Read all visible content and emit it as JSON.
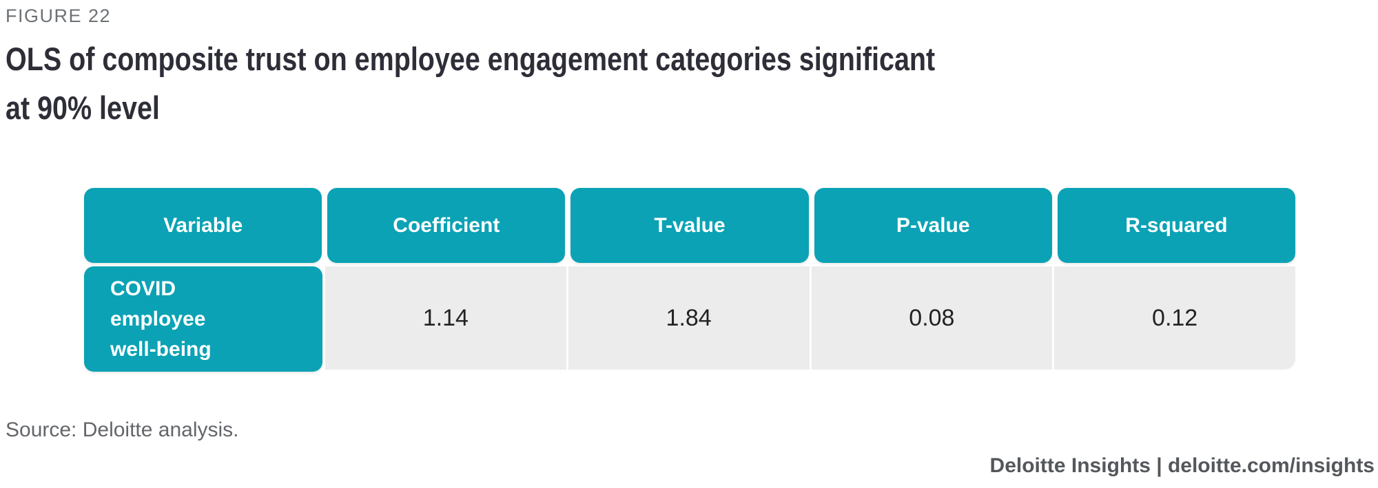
{
  "figure_label": "FIGURE 22",
  "title_line1": "OLS of composite trust on employee engagement categories significant",
  "title_line2": "at 90% level",
  "source": "Source: Deloitte analysis.",
  "footer": "Deloitte Insights | deloitte.com/insights",
  "colors": {
    "teal": "#0ba2b5",
    "row_gray": "#ececec",
    "title": "#2e2e38",
    "label_gray": "#6d7174",
    "source_gray": "#63666a",
    "footer_gray": "#54575b",
    "value_text": "#222222"
  },
  "table": {
    "headers": [
      "Variable",
      "Coefficient",
      "T-value",
      "P-value",
      "R-squared"
    ],
    "row": {
      "variable_lines": [
        "COVID",
        "employee",
        "well-being"
      ],
      "values": [
        "1.14",
        "1.84",
        "0.08",
        "0.12"
      ]
    }
  },
  "chart_data": {
    "type": "table",
    "title": "OLS of composite trust on employee engagement categories significant at 90% level",
    "columns": [
      "Variable",
      "Coefficient",
      "T-value",
      "P-value",
      "R-squared"
    ],
    "rows": [
      {
        "Variable": "COVID employee well-being",
        "Coefficient": 1.14,
        "T-value": 1.84,
        "P-value": 0.08,
        "R-squared": 0.12
      }
    ],
    "legend_position": "none",
    "grid": false
  }
}
